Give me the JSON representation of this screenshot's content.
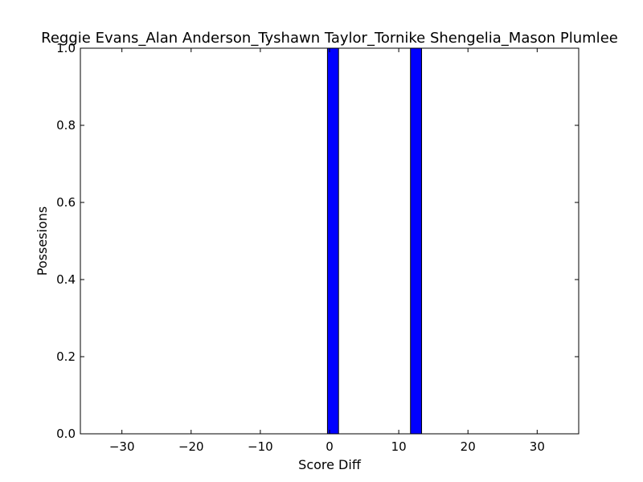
{
  "chart_data": {
    "type": "bar",
    "title": "Reggie Evans_Alan Anderson_Tyshawn Taylor_Tornike Shengelia_Mason Plumlee",
    "xlabel": "Score Diff",
    "ylabel": "Possesions",
    "xlim": [
      -36,
      36
    ],
    "ylim": [
      0,
      1.0
    ],
    "bar_color": "#0000ff",
    "bar_width": 1.6,
    "bars": [
      {
        "x": 0.5,
        "value": 1.0
      },
      {
        "x": 12.5,
        "value": 1.0
      }
    ],
    "x_ticks": [
      {
        "value": -30,
        "label": "−30"
      },
      {
        "value": -20,
        "label": "−20"
      },
      {
        "value": -10,
        "label": "−10"
      },
      {
        "value": 0,
        "label": "0"
      },
      {
        "value": 10,
        "label": "10"
      },
      {
        "value": 20,
        "label": "20"
      },
      {
        "value": 30,
        "label": "30"
      }
    ],
    "y_ticks": [
      {
        "value": 0.0,
        "label": "0.0"
      },
      {
        "value": 0.2,
        "label": "0.2"
      },
      {
        "value": 0.4,
        "label": "0.4"
      },
      {
        "value": 0.6,
        "label": "0.6"
      },
      {
        "value": 0.8,
        "label": "0.8"
      },
      {
        "value": 1.0,
        "label": "1.0"
      }
    ],
    "grid": false,
    "legend": "none"
  }
}
